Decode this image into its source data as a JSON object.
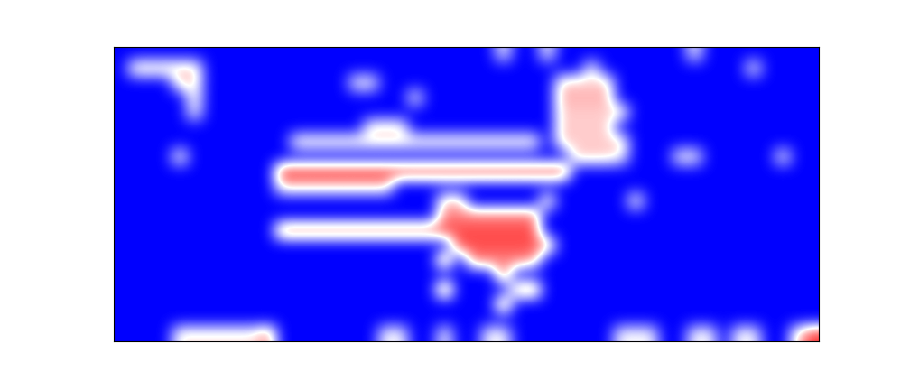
{
  "chart_data": {
    "type": "heatmap",
    "color": "bwr",
    "zlim": [
      0,
      1
    ],
    "tick_labels": false,
    "cells": [
      [
        0,
        0,
        0,
        0,
        0,
        0,
        0,
        0,
        0,
        0,
        0,
        0,
        0,
        0,
        0,
        0,
        0,
        0,
        0,
        0,
        0,
        0,
        0,
        0,
        0,
        0,
        0.5,
        0,
        0,
        0.5,
        0,
        0,
        0,
        0,
        0,
        0,
        0,
        0,
        0,
        0.5,
        0,
        0,
        0,
        0,
        0,
        0,
        0,
        0
      ],
      [
        0,
        0.6,
        0.6,
        0.6,
        0.6,
        0.6,
        0,
        0,
        0,
        0,
        0,
        0,
        0,
        0,
        0,
        0,
        0,
        0,
        0,
        0,
        0,
        0,
        0,
        0,
        0,
        0,
        0,
        0,
        0,
        0,
        0,
        0,
        0.5,
        0,
        0,
        0,
        0,
        0,
        0,
        0,
        0,
        0,
        0,
        0.5,
        0,
        0,
        0,
        0
      ],
      [
        0,
        0,
        0,
        0,
        0.6,
        0.6,
        0,
        0,
        0,
        0,
        0,
        0,
        0,
        0,
        0,
        0,
        0.5,
        0.5,
        0,
        0,
        0,
        0,
        0,
        0,
        0,
        0,
        0,
        0,
        0,
        0,
        0.6,
        0.6,
        0.6,
        0.6,
        0,
        0,
        0,
        0,
        0,
        0,
        0,
        0,
        0,
        0,
        0,
        0,
        0,
        0
      ],
      [
        0,
        0,
        0,
        0,
        0,
        0.55,
        0,
        0,
        0,
        0,
        0,
        0,
        0,
        0,
        0,
        0,
        0,
        0,
        0,
        0,
        0.5,
        0,
        0,
        0,
        0,
        0,
        0,
        0,
        0,
        0,
        0.65,
        0.65,
        0.65,
        0.65,
        0,
        0,
        0,
        0,
        0,
        0,
        0,
        0,
        0,
        0,
        0,
        0,
        0,
        0
      ],
      [
        0,
        0,
        0,
        0,
        0,
        0.5,
        0,
        0,
        0,
        0,
        0,
        0,
        0,
        0,
        0,
        0,
        0,
        0,
        0,
        0,
        0,
        0,
        0,
        0,
        0,
        0,
        0,
        0,
        0,
        0,
        0.6,
        0.6,
        0.6,
        0.6,
        0.6,
        0,
        0,
        0,
        0,
        0,
        0,
        0,
        0,
        0,
        0,
        0,
        0,
        0
      ],
      [
        0,
        0,
        0,
        0,
        0,
        0,
        0,
        0,
        0,
        0,
        0,
        0,
        0,
        0,
        0,
        0,
        0,
        0.55,
        0.55,
        0.55,
        0,
        0,
        0,
        0,
        0,
        0,
        0,
        0,
        0,
        0,
        0.6,
        0.6,
        0.6,
        0.6,
        0,
        0,
        0,
        0,
        0,
        0,
        0,
        0,
        0,
        0,
        0,
        0,
        0,
        0
      ],
      [
        0,
        0,
        0,
        0,
        0,
        0,
        0,
        0,
        0,
        0,
        0,
        0,
        0.55,
        0.55,
        0.55,
        0.55,
        0.55,
        0.55,
        0.55,
        0.55,
        0.55,
        0.55,
        0.55,
        0.55,
        0.55,
        0.55,
        0.55,
        0.55,
        0.55,
        0,
        0.6,
        0.6,
        0.6,
        0.6,
        0.6,
        0,
        0,
        0,
        0,
        0,
        0,
        0,
        0,
        0,
        0,
        0,
        0,
        0
      ],
      [
        0,
        0,
        0,
        0,
        0.55,
        0,
        0,
        0,
        0,
        0,
        0,
        0,
        0,
        0,
        0,
        0,
        0,
        0,
        0,
        0,
        0,
        0,
        0,
        0,
        0,
        0,
        0,
        0,
        0,
        0,
        0,
        0.6,
        0.6,
        0.6,
        0.5,
        0,
        0,
        0,
        0.5,
        0.5,
        0,
        0,
        0,
        0,
        0,
        0.5,
        0,
        0
      ],
      [
        0,
        0,
        0,
        0,
        0,
        0,
        0,
        0,
        0,
        0,
        0,
        0.9,
        0.9,
        0.9,
        0.9,
        0.9,
        0.9,
        0.9,
        0.9,
        0.9,
        0.9,
        0.9,
        0.9,
        0.9,
        0.9,
        0.9,
        0.9,
        0.9,
        0.9,
        0.9,
        0.9,
        0,
        0,
        0,
        0,
        0,
        0,
        0,
        0,
        0,
        0,
        0,
        0,
        0,
        0,
        0,
        0,
        0
      ],
      [
        0,
        0,
        0,
        0,
        0,
        0,
        0,
        0,
        0,
        0,
        0,
        0.6,
        0.6,
        0.6,
        0.6,
        0.6,
        0.6,
        0.6,
        0.6,
        0,
        0,
        0,
        0,
        0,
        0,
        0,
        0,
        0,
        0,
        0,
        0,
        0,
        0,
        0,
        0,
        0,
        0,
        0,
        0,
        0,
        0,
        0,
        0,
        0,
        0,
        0,
        0,
        0
      ],
      [
        0,
        0,
        0,
        0,
        0,
        0,
        0,
        0,
        0,
        0,
        0,
        0,
        0,
        0,
        0,
        0,
        0,
        0,
        0,
        0,
        0,
        0,
        0.6,
        0.6,
        0,
        0,
        0,
        0,
        0,
        0.6,
        0,
        0,
        0,
        0,
        0,
        0.55,
        0,
        0,
        0,
        0,
        0,
        0,
        0,
        0,
        0,
        0,
        0,
        0
      ],
      [
        0,
        0,
        0,
        0,
        0,
        0,
        0,
        0,
        0,
        0,
        0,
        0,
        0,
        0,
        0,
        0,
        0,
        0,
        0,
        0,
        0,
        0,
        0.75,
        0.75,
        0.75,
        0.75,
        0.75,
        0.75,
        0.75,
        0,
        0,
        0,
        0,
        0,
        0,
        0,
        0,
        0,
        0,
        0,
        0,
        0,
        0,
        0,
        0,
        0,
        0,
        0
      ],
      [
        0,
        0,
        0,
        0,
        0,
        0,
        0,
        0,
        0,
        0,
        0,
        0.8,
        0.8,
        0.8,
        0.8,
        0.8,
        0.8,
        0.8,
        0.8,
        0.8,
        0.8,
        0.8,
        0.85,
        0.85,
        0.85,
        0.85,
        0.85,
        0.85,
        0.85,
        0,
        0,
        0,
        0,
        0,
        0,
        0,
        0,
        0,
        0,
        0,
        0,
        0,
        0,
        0,
        0,
        0,
        0,
        0
      ],
      [
        0,
        0,
        0,
        0,
        0,
        0,
        0,
        0,
        0,
        0,
        0,
        0,
        0,
        0,
        0,
        0,
        0,
        0,
        0,
        0,
        0,
        0,
        0,
        0.85,
        0.85,
        0.85,
        0.85,
        0.85,
        0.85,
        0.7,
        0,
        0,
        0,
        0,
        0,
        0,
        0,
        0,
        0,
        0,
        0,
        0,
        0,
        0,
        0,
        0,
        0,
        0
      ],
      [
        0,
        0,
        0,
        0,
        0,
        0,
        0,
        0,
        0,
        0,
        0,
        0,
        0,
        0,
        0,
        0,
        0,
        0,
        0,
        0,
        0,
        0,
        0.8,
        0,
        0.75,
        0.75,
        0.75,
        0.75,
        0.7,
        0,
        0,
        0,
        0,
        0,
        0,
        0,
        0,
        0,
        0,
        0,
        0,
        0,
        0,
        0,
        0,
        0,
        0,
        0
      ],
      [
        0,
        0,
        0,
        0,
        0,
        0,
        0,
        0,
        0,
        0,
        0,
        0,
        0,
        0,
        0,
        0,
        0,
        0,
        0,
        0,
        0,
        0,
        0,
        0,
        0,
        0,
        0.8,
        0,
        0,
        0,
        0,
        0,
        0,
        0,
        0,
        0,
        0,
        0,
        0,
        0,
        0,
        0,
        0,
        0,
        0,
        0,
        0,
        0
      ],
      [
        0,
        0,
        0,
        0,
        0,
        0,
        0,
        0,
        0,
        0,
        0,
        0,
        0,
        0,
        0,
        0,
        0,
        0,
        0,
        0,
        0,
        0,
        0.85,
        0,
        0,
        0,
        0,
        0.7,
        0.8,
        0,
        0,
        0,
        0,
        0,
        0,
        0,
        0,
        0,
        0,
        0,
        0,
        0,
        0,
        0,
        0,
        0,
        0,
        0
      ],
      [
        0,
        0,
        0,
        0,
        0,
        0,
        0,
        0,
        0,
        0,
        0,
        0,
        0,
        0,
        0,
        0,
        0,
        0,
        0,
        0,
        0,
        0,
        0,
        0,
        0,
        0,
        0.8,
        0,
        0,
        0,
        0,
        0,
        0,
        0,
        0,
        0,
        0,
        0,
        0,
        0,
        0,
        0,
        0,
        0,
        0,
        0,
        0,
        0
      ],
      [
        0,
        0,
        0,
        0,
        0,
        0,
        0,
        0,
        0,
        0,
        0,
        0,
        0,
        0,
        0,
        0,
        0,
        0,
        0,
        0,
        0,
        0,
        0,
        0,
        0,
        0,
        0,
        0,
        0,
        0,
        0,
        0,
        0,
        0,
        0,
        0,
        0,
        0,
        0,
        0,
        0,
        0,
        0,
        0,
        0,
        0,
        0,
        0
      ],
      [
        0,
        0,
        0,
        0,
        0.55,
        0.55,
        0.55,
        0.55,
        0.55,
        0.55,
        0.75,
        0,
        0,
        0,
        0,
        0,
        0,
        0,
        0.5,
        0.5,
        0,
        0,
        0.5,
        0,
        0,
        0.5,
        0.5,
        0,
        0,
        0,
        0,
        0,
        0,
        0,
        0.5,
        0.5,
        0.5,
        0,
        0,
        0.5,
        0.5,
        0,
        0.5,
        0.5,
        0,
        0,
        0.6,
        0.9
      ]
    ]
  }
}
